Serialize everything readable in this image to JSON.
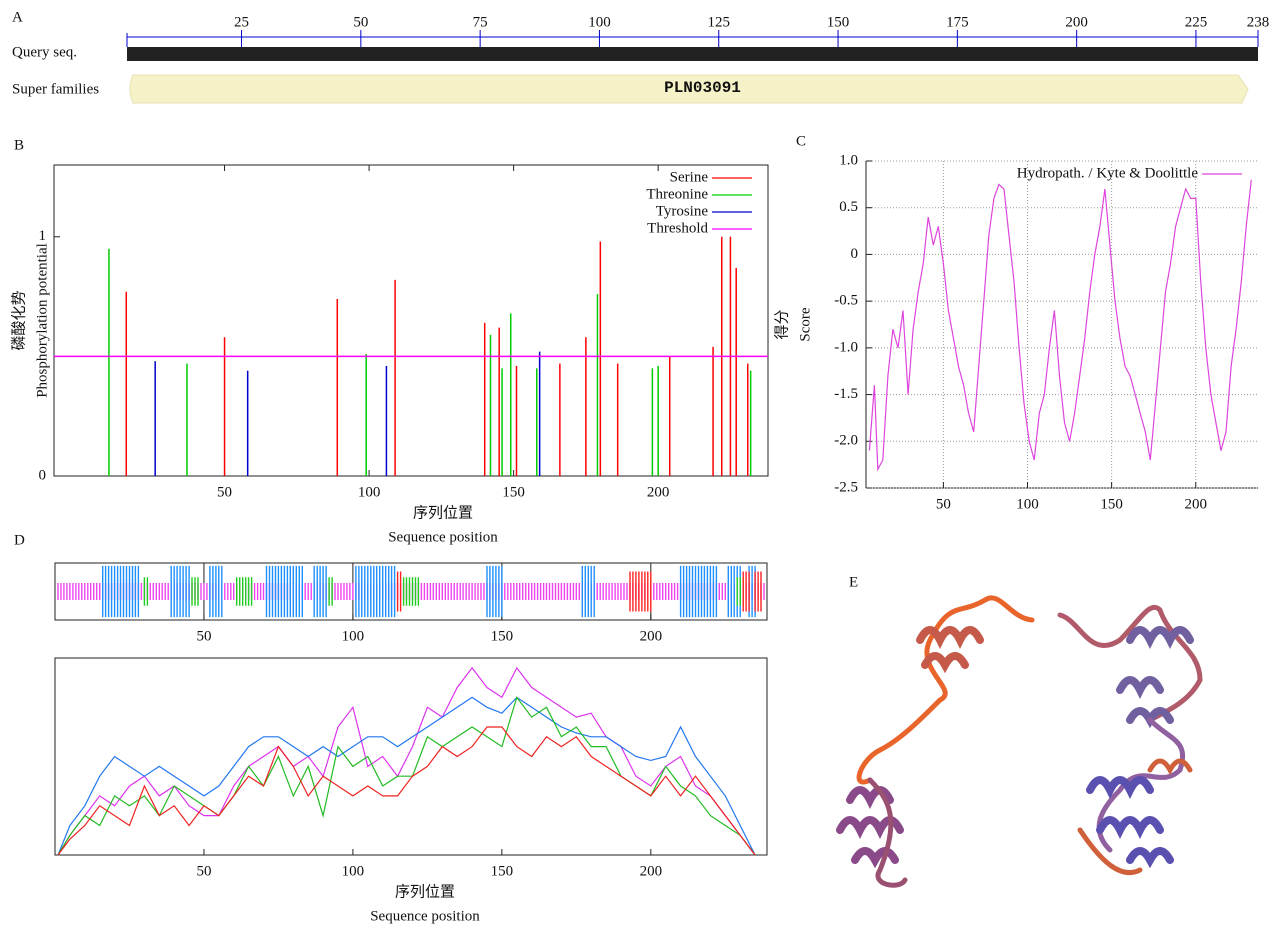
{
  "chart_data": [
    {
      "panel": "A",
      "type": "domain",
      "tracks": [
        "Query seq.",
        "Super families"
      ],
      "domain": "PLN03091",
      "xlim": [
        1,
        238
      ],
      "xticks": [
        25,
        50,
        75,
        100,
        125,
        150,
        175,
        200,
        225,
        238
      ],
      "color": "#222222",
      "domain_color": "#f5f2c8",
      "tick_color": "#0000cc"
    },
    {
      "panel": "B",
      "type": "bar",
      "ylabel": [
        "磷酸化势",
        "Phosphorylation potential"
      ],
      "xlabel": [
        "序列位置",
        "Sequence position"
      ],
      "xlim": [
        -9,
        238
      ],
      "ylim": [
        0,
        1.3
      ],
      "xticks": [
        50,
        100,
        150,
        200
      ],
      "yticks": [
        0,
        1
      ],
      "legend": "upper right",
      "series": [
        {
          "name": "Serine",
          "color": "#ff0000",
          "x": [
            16,
            50,
            89,
            109,
            140,
            145,
            151,
            166,
            175,
            180,
            186,
            204,
            219,
            222,
            225,
            227,
            231
          ],
          "values": [
            0.77,
            0.58,
            0.74,
            0.82,
            0.64,
            0.62,
            0.46,
            0.47,
            0.58,
            0.98,
            0.47,
            0.5,
            0.54,
            1.0,
            1.0,
            0.87,
            0.47
          ]
        },
        {
          "name": "Threonine",
          "color": "#00cc00",
          "x": [
            10,
            37,
            99,
            142,
            146,
            149,
            158,
            179,
            198,
            200,
            232
          ],
          "values": [
            0.95,
            0.47,
            0.51,
            0.59,
            0.45,
            0.68,
            0.45,
            0.76,
            0.45,
            0.46,
            0.44
          ]
        },
        {
          "name": "Tyrosine",
          "color": "#0000cc",
          "x": [
            26,
            58,
            106,
            159
          ],
          "values": [
            0.48,
            0.44,
            0.46,
            0.52
          ]
        },
        {
          "name": "Threshold",
          "color": "#ff00ff",
          "values": [
            0.5
          ]
        }
      ]
    },
    {
      "panel": "C",
      "type": "line",
      "ylabel": [
        "得分",
        "Score"
      ],
      "xlim": [
        4,
        237
      ],
      "ylim": [
        -2.5,
        1.0
      ],
      "xticks": [
        50,
        100,
        150,
        200
      ],
      "yticks": [
        {
          "value": 1.0,
          "label": "1.0"
        },
        0.5,
        0,
        -0.5,
        {
          "value": -1.0,
          "label": "-1.0"
        },
        -1.5,
        {
          "value": -2.0,
          "label": "-2.0"
        },
        -2.5
      ],
      "grid": true,
      "legend": "upper right",
      "x": [
        6,
        9,
        11,
        14,
        17,
        20,
        23,
        26,
        29,
        32,
        35,
        38,
        41,
        44,
        47,
        50,
        53,
        56,
        59,
        62,
        65,
        68,
        71,
        74,
        77,
        80,
        83,
        86,
        89,
        92,
        95,
        98,
        101,
        104,
        107,
        110,
        113,
        116,
        119,
        122,
        125,
        128,
        131,
        134,
        137,
        140,
        143,
        146,
        149,
        152,
        155,
        158,
        161,
        164,
        167,
        170,
        173,
        176,
        179,
        182,
        185,
        188,
        191,
        194,
        197,
        200,
        203,
        206,
        209,
        212,
        215,
        218,
        221,
        224,
        227,
        230,
        233
      ],
      "series": [
        {
          "name": "Hydropath. / Kyte & Doolittle",
          "color": "#dd44dd",
          "values": [
            -2.1,
            -1.4,
            -2.3,
            -2.2,
            -1.3,
            -0.8,
            -1.0,
            -0.6,
            -1.5,
            -0.8,
            -0.4,
            -0.1,
            0.4,
            0.1,
            0.3,
            -0.1,
            -0.6,
            -0.9,
            -1.2,
            -1.4,
            -1.7,
            -1.9,
            -1.2,
            -0.5,
            0.2,
            0.6,
            0.75,
            0.7,
            0.2,
            -0.3,
            -1.0,
            -1.6,
            -2.0,
            -2.2,
            -1.7,
            -1.5,
            -1.0,
            -0.6,
            -1.3,
            -1.8,
            -2.0,
            -1.7,
            -1.3,
            -0.9,
            -0.4,
            0.0,
            0.3,
            0.7,
            0.1,
            -0.5,
            -0.9,
            -1.2,
            -1.3,
            -1.5,
            -1.7,
            -1.9,
            -2.2,
            -1.6,
            -1.0,
            -0.4,
            -0.1,
            0.3,
            0.5,
            0.7,
            0.6,
            0.6,
            -0.3,
            -1.0,
            -1.5,
            -1.8,
            -2.1,
            -1.9,
            -1.2,
            -0.8,
            -0.3,
            0.3,
            0.8
          ]
        }
      ]
    },
    {
      "panel": "D",
      "type": "strip",
      "xlim": [
        0,
        239
      ],
      "xticks": [
        50,
        100,
        150,
        200
      ],
      "series": [
        {
          "color": "#ee44ee",
          "ranges": [
            [
              1,
              238
            ]
          ]
        },
        {
          "color": "#1e90ff",
          "ranges": [
            [
              16,
              28
            ],
            [
              39,
              45
            ],
            [
              52,
              56
            ],
            [
              71,
              83
            ],
            [
              87,
              91
            ],
            [
              101,
              114
            ],
            [
              145,
              150
            ],
            [
              177,
              181
            ],
            [
              210,
              222
            ],
            [
              226,
              230
            ],
            [
              233,
              235
            ]
          ]
        },
        {
          "color": "#22cc22",
          "ranges": [
            [
              30,
              31
            ],
            [
              46,
              48
            ],
            [
              61,
              66
            ],
            [
              92,
              93
            ],
            [
              117,
              122
            ],
            [
              229,
              231
            ]
          ]
        },
        {
          "color": "#ff2222",
          "ranges": [
            [
              115,
              116
            ],
            [
              193,
              200
            ],
            [
              231,
              233
            ],
            [
              235,
              237
            ]
          ]
        }
      ]
    },
    {
      "type": "line",
      "xlabel": [
        "序列位置",
        "Sequence position"
      ],
      "xlim": [
        0,
        239
      ],
      "ylim": [
        0,
        1
      ],
      "xticks": [
        50,
        100,
        150,
        200
      ],
      "x": [
        1,
        5,
        10,
        15,
        20,
        25,
        30,
        35,
        40,
        45,
        50,
        55,
        60,
        65,
        70,
        75,
        80,
        85,
        90,
        95,
        100,
        105,
        110,
        115,
        120,
        125,
        130,
        135,
        140,
        145,
        150,
        155,
        160,
        165,
        170,
        175,
        180,
        185,
        190,
        195,
        200,
        205,
        210,
        215,
        220,
        225,
        230,
        235
      ],
      "series": [
        {
          "color": "#dd33ee",
          "values": [
            0.0,
            0.1,
            0.2,
            0.3,
            0.25,
            0.35,
            0.4,
            0.3,
            0.35,
            0.25,
            0.2,
            0.2,
            0.35,
            0.45,
            0.5,
            0.55,
            0.45,
            0.5,
            0.4,
            0.65,
            0.75,
            0.45,
            0.5,
            0.4,
            0.55,
            0.75,
            0.7,
            0.85,
            0.95,
            0.85,
            0.8,
            0.95,
            0.85,
            0.8,
            0.75,
            0.7,
            0.72,
            0.6,
            0.55,
            0.4,
            0.35,
            0.45,
            0.5,
            0.35,
            0.3,
            0.2,
            0.1,
            0.0
          ]
        },
        {
          "color": "#2277ee",
          "values": [
            0.0,
            0.15,
            0.25,
            0.4,
            0.5,
            0.45,
            0.4,
            0.45,
            0.4,
            0.35,
            0.3,
            0.35,
            0.45,
            0.55,
            0.6,
            0.6,
            0.55,
            0.5,
            0.55,
            0.5,
            0.55,
            0.6,
            0.6,
            0.55,
            0.6,
            0.65,
            0.7,
            0.75,
            0.8,
            0.75,
            0.72,
            0.8,
            0.75,
            0.7,
            0.65,
            0.62,
            0.6,
            0.6,
            0.55,
            0.5,
            0.48,
            0.5,
            0.65,
            0.5,
            0.4,
            0.3,
            0.15,
            0.0
          ]
        },
        {
          "color": "#22bb22",
          "values": [
            0.0,
            0.1,
            0.2,
            0.15,
            0.3,
            0.25,
            0.3,
            0.2,
            0.35,
            0.3,
            0.25,
            0.2,
            0.3,
            0.45,
            0.35,
            0.5,
            0.3,
            0.45,
            0.2,
            0.55,
            0.45,
            0.5,
            0.35,
            0.4,
            0.4,
            0.6,
            0.55,
            0.6,
            0.65,
            0.6,
            0.55,
            0.8,
            0.7,
            0.75,
            0.6,
            0.65,
            0.55,
            0.55,
            0.4,
            0.35,
            0.3,
            0.45,
            0.35,
            0.3,
            0.2,
            0.15,
            0.1,
            0.0
          ]
        },
        {
          "color": "#ee2222",
          "values": [
            0.0,
            0.08,
            0.15,
            0.25,
            0.2,
            0.15,
            0.35,
            0.2,
            0.25,
            0.15,
            0.25,
            0.2,
            0.3,
            0.4,
            0.35,
            0.55,
            0.45,
            0.3,
            0.4,
            0.35,
            0.3,
            0.35,
            0.3,
            0.3,
            0.4,
            0.45,
            0.55,
            0.5,
            0.55,
            0.65,
            0.65,
            0.55,
            0.5,
            0.6,
            0.55,
            0.6,
            0.5,
            0.45,
            0.4,
            0.35,
            0.3,
            0.4,
            0.3,
            0.4,
            0.3,
            0.2,
            0.1,
            0.0
          ]
        }
      ]
    }
  ],
  "image_panel": "E"
}
